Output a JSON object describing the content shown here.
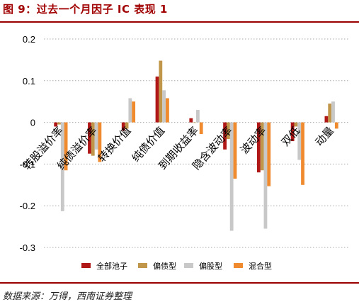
{
  "header": {
    "title": "图 9：过去一个月因子 IC 表现 1"
  },
  "footer": {
    "source": "数据来源：万得，西南证券整理"
  },
  "colors": {
    "series": [
      "#b01717",
      "#c0964b",
      "#c8c8c8",
      "#f08a2e"
    ],
    "rule": "#9a0000",
    "grid": "#aaaaaa"
  },
  "chart_data": {
    "type": "bar",
    "categories": [
      "转股溢价率",
      "纯债溢价率",
      "转换价值",
      "纯债价值",
      "到期收益率",
      "隐含波动率",
      "波动率",
      "双低",
      "动量"
    ],
    "series": [
      {
        "name": "全部池子",
        "values": [
          -0.01,
          -0.075,
          -0.02,
          0.11,
          0.01,
          -0.065,
          -0.12,
          -0.045,
          0.015
        ]
      },
      {
        "name": "偏债型",
        "values": [
          -0.005,
          -0.08,
          -0.015,
          0.148,
          0.0,
          -0.04,
          -0.115,
          -0.01,
          0.045
        ]
      },
      {
        "name": "偏股型",
        "values": [
          -0.213,
          -0.065,
          0.058,
          0.077,
          0.03,
          -0.26,
          -0.255,
          -0.09,
          0.05
        ]
      },
      {
        "name": "混合型",
        "values": [
          -0.115,
          -0.095,
          0.05,
          0.058,
          -0.028,
          -0.135,
          -0.153,
          -0.15,
          -0.015
        ]
      }
    ],
    "ylim": [
      -0.3,
      0.2
    ],
    "yticks": [
      "0.2",
      "0.1",
      "0",
      "-0.1",
      "-0.2",
      "-0.3"
    ],
    "ytick_values": [
      0.2,
      0.1,
      0,
      -0.1,
      -0.2,
      -0.3
    ],
    "grid": true,
    "grid_style": "dotted",
    "legend_position": "bottom"
  }
}
